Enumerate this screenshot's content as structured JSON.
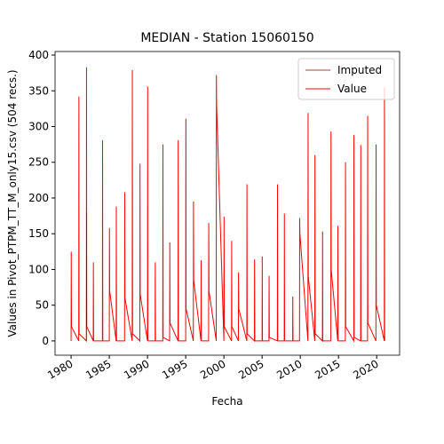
{
  "chart_data": {
    "type": "line",
    "title": "MEDIAN - Station 15060150",
    "xlabel": "Fecha",
    "ylabel": "Values in Pivot_PTPM_TT_M_only15.csv (504 recs.)",
    "xlim": [
      1977.9,
      2023.0
    ],
    "ylim": [
      -20,
      405
    ],
    "xticks": [
      1980,
      1985,
      1990,
      1995,
      2000,
      2005,
      2010,
      2015,
      2020
    ],
    "yticks": [
      0,
      50,
      100,
      150,
      200,
      250,
      300,
      350,
      400
    ],
    "legend": "upper right",
    "series": [
      {
        "name": "Imputed",
        "color": "#8b0000",
        "x": [
          1982,
          1982.02,
          1982.05
        ],
        "values": [
          0,
          180,
          20
        ]
      },
      {
        "name": "Value",
        "color": "#ff0000",
        "x": [
          1980,
          1980.02,
          1980.05,
          1981,
          1981.02,
          1981.05,
          1982,
          1982.02,
          1982.05,
          1982.9,
          1982.92,
          1982.95,
          1984.1,
          1984.12,
          1984.15,
          1985,
          1985.02,
          1985.05,
          1985.9,
          1985.92,
          1985.95,
          1987,
          1987.02,
          1987.05,
          1988,
          1988.02,
          1988.05,
          1989,
          1989.02,
          1989.05,
          1990,
          1990.02,
          1990.05,
          1991,
          1991.02,
          1991.05,
          1992,
          1992.02,
          1992.05,
          1992.9,
          1992.92,
          1992.95,
          1994,
          1994.02,
          1994.05,
          1995,
          1995.02,
          1995.05,
          1996,
          1996.02,
          1996.05,
          1997,
          1997.02,
          1997.05,
          1998,
          1998.02,
          1998.05,
          1999,
          1999.02,
          1999.05,
          2000,
          2000.02,
          2000.05,
          2001,
          2001.02,
          2001.05,
          2001.9,
          2001.92,
          2001.95,
          2003,
          2003.02,
          2003.05,
          2004,
          2004.02,
          2004.05,
          2005,
          2005.02,
          2005.05,
          2005.9,
          2005.92,
          2005.95,
          2007,
          2007.02,
          2007.05,
          2007.9,
          2007.92,
          2007.95,
          2009,
          2009.02,
          2009.05,
          2009.9,
          2009.92,
          2009.95,
          2011,
          2011.02,
          2011.05,
          2011.9,
          2011.92,
          2011.95,
          2012.9,
          2012.92,
          2012.95,
          2014,
          2014.02,
          2014.05,
          2014.9,
          2014.92,
          2014.95,
          2015.9,
          2015.92,
          2015.95,
          2017,
          2017.02,
          2017.05,
          2017.9,
          2017.92,
          2017.95,
          2018.8,
          2018.82,
          2018.85,
          2019.9,
          2019.92,
          2019.95,
          2021,
          2021.02,
          2021.05
        ],
        "values": [
          0,
          125,
          20,
          0,
          342,
          10,
          0,
          383,
          20,
          0,
          110,
          0,
          0,
          281,
          0,
          0,
          158,
          70,
          0,
          188,
          0,
          0,
          208,
          60,
          0,
          379,
          10,
          0,
          248,
          65,
          0,
          356,
          0,
          0,
          110,
          0,
          0,
          275,
          5,
          0,
          138,
          25,
          0,
          281,
          0,
          0,
          311,
          45,
          0,
          195,
          85,
          0,
          113,
          0,
          0,
          165,
          70,
          0,
          372,
          330,
          0,
          174,
          20,
          0,
          140,
          20,
          0,
          96,
          45,
          0,
          219,
          10,
          0,
          114,
          0,
          0,
          118,
          0,
          0,
          91,
          5,
          0,
          219,
          0,
          0,
          178,
          0,
          0,
          62,
          0,
          0,
          172,
          150,
          0,
          319,
          90,
          0,
          260,
          10,
          0,
          153,
          0,
          0,
          293,
          100,
          0,
          161,
          0,
          0,
          250,
          20,
          0,
          288,
          5,
          0,
          274,
          0,
          0,
          315,
          25,
          0,
          275,
          50,
          0,
          355,
          0
        ]
      }
    ]
  }
}
